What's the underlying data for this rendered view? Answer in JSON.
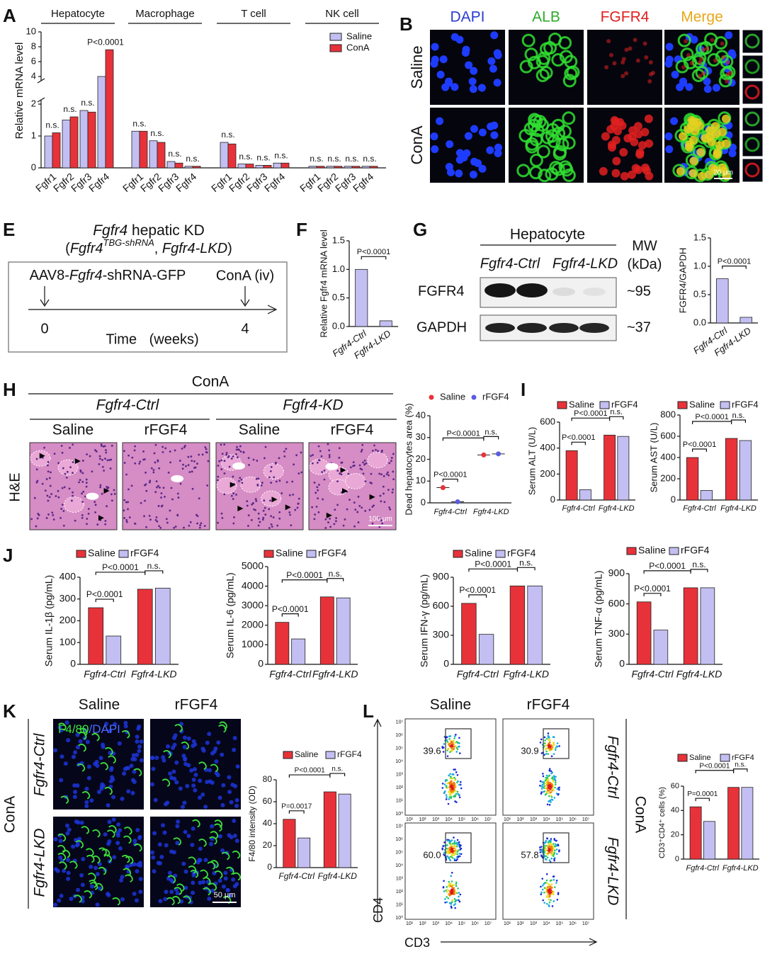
{
  "panel_labels": [
    "A",
    "B",
    "E",
    "F",
    "G",
    "H",
    "I",
    "J",
    "K",
    "L"
  ],
  "B": {
    "columns": [
      "DAPI",
      "ALB",
      "FGFR4",
      "Merge"
    ],
    "rows": [
      "Saline",
      "ConA"
    ],
    "scale_bar": "20 μm"
  },
  "E": {
    "title": [
      "Fgfr4",
      " hepatic KD"
    ],
    "subtitle": [
      "(",
      "Fgfr4",
      "TBG-shRNA",
      ", ",
      "Fgfr4-LKD",
      ")"
    ],
    "injection": [
      "AAV8-",
      "Fgfr4",
      "-shRNA-GFP"
    ],
    "treatment": "ConA (iv)",
    "timepoints": [
      "0",
      "4"
    ],
    "time_label": "Time (weeks)"
  },
  "G_blot": {
    "header": "Hepatocyte",
    "lanes": [
      "Fgfr4-Ctrl",
      "Fgfr4-LKD"
    ],
    "mw_header": [
      "MW",
      "(kDa)"
    ],
    "rows": [
      {
        "name": "FGFR4",
        "mw": "~95"
      },
      {
        "name": "GAPDH",
        "mw": "~37"
      }
    ]
  },
  "H_images": {
    "condition": "ConA",
    "genotypes": [
      "Fgfr4-Ctrl",
      "Fgfr4-KD"
    ],
    "treatments": [
      "Saline",
      "rFGF4",
      "Saline",
      "rFGF4"
    ],
    "stain": "H&E",
    "scale_bar": "100 μm"
  },
  "K_images": {
    "columns": [
      "Saline",
      "rFGF4"
    ],
    "rows": [
      "Fgfr4-Ctrl",
      "Fgfr4-LKD"
    ],
    "condition": "ConA",
    "stain": [
      "F4/80",
      "/DAPI"
    ],
    "scale_bar": "50 μm"
  },
  "L_flow": {
    "columns": [
      "Saline",
      "rFGF4"
    ],
    "rows": [
      "Fgfr4-Ctrl",
      "Fgfr4-LKD"
    ],
    "condition": "ConA",
    "y_axis": "CD4",
    "x_axis": "CD3",
    "gate_labels": [
      [
        "39.6",
        "30.9"
      ],
      [
        "60.0",
        "57.8"
      ]
    ],
    "yticks": [
      "10⁰",
      "10¹",
      "10²",
      "10³",
      "10⁴",
      "10⁵",
      "10⁶",
      "10⁷"
    ],
    "xticks": [
      "10¹",
      "10²",
      "10³",
      "10⁴",
      "10⁵",
      "10⁶",
      "10⁷"
    ]
  },
  "chart_data": [
    {
      "type": "bar",
      "ylabel": "Relative mRNA level",
      "groups": [
        "Hepatocyte",
        "Macrophage",
        "T cell",
        "NK cell"
      ],
      "categories": [
        "Fgfr1",
        "Fgfr2",
        "Fgfr3",
        "Fgfr4",
        "Fgfr1",
        "Fgfr2",
        "Fgfr3",
        "Fgfr4",
        "Fgfr1",
        "Fgfr2",
        "Fgfr3",
        "Fgfr4",
        "Fgfr1",
        "Fgfr2",
        "Fgfr3",
        "Fgfr4"
      ],
      "series": [
        {
          "name": "Saline",
          "color": "#c3bff2",
          "values": [
            1.0,
            1.5,
            1.8,
            4.0,
            1.15,
            0.85,
            0.2,
            0.05,
            0.8,
            0.12,
            0.08,
            0.15,
            0.05,
            0.05,
            0.05,
            0.05
          ]
        },
        {
          "name": "ConA",
          "color": "#e8323a",
          "values": [
            1.1,
            1.6,
            1.75,
            7.6,
            1.15,
            0.8,
            0.15,
            0.05,
            0.75,
            0.12,
            0.08,
            0.15,
            0.05,
            0.05,
            0.05,
            0.05
          ]
        }
      ],
      "ylim": [
        0,
        10
      ],
      "yticks": [
        0,
        1,
        2,
        4,
        6,
        8,
        10
      ],
      "axis_break": [
        2,
        4
      ],
      "legend": "upper right",
      "annotations": [
        "n.s.",
        "n.s.",
        "n.s.",
        "P<0.0001",
        "n.s.",
        "n.s.",
        "n.s.",
        "n.s.",
        "n.s.",
        "n.s.",
        "n.s.",
        "n.s.",
        "n.s.",
        "n.s.",
        "n.s.",
        "n.s."
      ]
    },
    {
      "type": "bar",
      "ylabel": "Relative Fgfr4 mRNA level",
      "categories": [
        "Fgfr4-Ctrl",
        "Fgfr4-LKD"
      ],
      "values": [
        1.0,
        0.1
      ],
      "color": "#c3bff2",
      "ylim": [
        0,
        1.5
      ],
      "yticks": [
        {
          "value": 0,
          "label": "0.0"
        },
        0.5,
        {
          "value": 1,
          "label": "1.0"
        },
        1.5
      ],
      "annotations": [
        "P<0.0001"
      ]
    },
    {
      "type": "bar",
      "ylabel": "FGFR4/GAPDH",
      "categories": [
        "Fgfr4-Ctrl",
        "Fgfr4-LKD"
      ],
      "values": [
        0.78,
        0.1
      ],
      "color": "#c3bff2",
      "ylim": [
        0,
        1.5
      ],
      "yticks": [
        {
          "value": 0,
          "label": "0.0"
        },
        0.5,
        {
          "value": 1,
          "label": "1.0"
        },
        1.5
      ],
      "annotations": [
        "P<0.0001"
      ]
    },
    {
      "type": "dot",
      "ylabel": "Dead hepatocytes area (%)",
      "categories": [
        "Fgfr4-Ctrl",
        "Fgfr4-LKD"
      ],
      "series": [
        {
          "name": "Saline",
          "color": "#e8323a",
          "values": [
            7,
            22
          ]
        },
        {
          "name": "rFGF4",
          "color": "#5b5be0",
          "values": [
            0.5,
            22.5
          ]
        }
      ],
      "ylim": [
        0,
        40
      ],
      "yticks": [
        0,
        10,
        20,
        30,
        40
      ],
      "annotations": [
        "P<0.0001",
        "P<0.0001",
        "n.s."
      ]
    },
    {
      "type": "bar",
      "ylabel": "Serum ALT (U/L)",
      "categories": [
        "Fgfr4-Ctrl",
        "Fgfr4-LKD"
      ],
      "series": [
        {
          "name": "Saline",
          "color": "#e8323a",
          "values": [
            380,
            500
          ]
        },
        {
          "name": "rFGF4",
          "color": "#c3bff2",
          "values": [
            80,
            490
          ]
        }
      ],
      "ylim": [
        0,
        600
      ],
      "yticks": [
        0,
        200,
        400,
        600
      ],
      "annotations": [
        "P<0.0001",
        "P<0.0001",
        "n.s."
      ]
    },
    {
      "type": "bar",
      "ylabel": "Serum AST (U/L)",
      "categories": [
        "Fgfr4-Ctrl",
        "Fgfr4-LKD"
      ],
      "series": [
        {
          "name": "Saline",
          "color": "#e8323a",
          "values": [
            400,
            580
          ]
        },
        {
          "name": "rFGF4",
          "color": "#c3bff2",
          "values": [
            90,
            560
          ]
        }
      ],
      "ylim": [
        0,
        800
      ],
      "yticks": [
        0,
        200,
        400,
        600,
        800
      ],
      "annotations": [
        "P<0.0001",
        "P<0.0001",
        "n.s."
      ]
    },
    {
      "type": "bar",
      "ylabel": "Serum IL-1β (pg/mL)",
      "categories": [
        "Fgfr4-Ctrl",
        "Fgfr4-LKD"
      ],
      "series": [
        {
          "name": "Saline",
          "color": "#e8323a",
          "values": [
            260,
            345
          ]
        },
        {
          "name": "rFGF4",
          "color": "#c3bff2",
          "values": [
            130,
            350
          ]
        }
      ],
      "ylim": [
        0,
        400
      ],
      "yticks": [
        0,
        100,
        200,
        300,
        400
      ],
      "annotations": [
        "P<0.0001",
        "P<0.0001",
        "n.s."
      ]
    },
    {
      "type": "bar",
      "ylabel": "Serum IL-6 (pg/mL)",
      "categories": [
        "Fgfr4-Ctrl",
        "Fgfr4-LKD"
      ],
      "series": [
        {
          "name": "Saline",
          "color": "#e8323a",
          "values": [
            2150,
            3450
          ]
        },
        {
          "name": "rFGF4",
          "color": "#c3bff2",
          "values": [
            1300,
            3400
          ]
        }
      ],
      "ylim": [
        0,
        5000
      ],
      "yticks": [
        0,
        1000,
        2000,
        3000,
        4000,
        5000
      ],
      "annotations": [
        "P<0.0001",
        "P<0.0001",
        "n.s."
      ]
    },
    {
      "type": "bar",
      "ylabel": "Serum IFN-γ (pg/mL)",
      "categories": [
        "Fgfr4-Ctrl",
        "Fgfr4-LKD"
      ],
      "series": [
        {
          "name": "Saline",
          "color": "#e8323a",
          "values": [
            630,
            810
          ]
        },
        {
          "name": "rFGF4",
          "color": "#c3bff2",
          "values": [
            310,
            810
          ]
        }
      ],
      "ylim": [
        0,
        900
      ],
      "yticks": [
        0,
        300,
        600,
        900
      ],
      "annotations": [
        "P<0.0001",
        "P<0.0001",
        "n.s."
      ]
    },
    {
      "type": "bar",
      "ylabel": "Serum TNF-α (pg/mL)",
      "categories": [
        "Fgfr4-Ctrl",
        "Fgfr4-LKD"
      ],
      "series": [
        {
          "name": "Saline",
          "color": "#e8323a",
          "values": [
            620,
            760
          ]
        },
        {
          "name": "rFGF4",
          "color": "#c3bff2",
          "values": [
            340,
            760
          ]
        }
      ],
      "ylim": [
        0,
        900
      ],
      "yticks": [
        0,
        300,
        600,
        900
      ],
      "annotations": [
        "P<0.0001",
        "P<0.0001",
        "n.s."
      ]
    },
    {
      "type": "bar",
      "ylabel": "F4/80 intensity (OD)",
      "categories": [
        "Fgfr4-Ctrl",
        "Fgfr4-LKD"
      ],
      "series": [
        {
          "name": "Saline",
          "color": "#e8323a",
          "values": [
            44,
            69
          ]
        },
        {
          "name": "rFGF4",
          "color": "#c3bff2",
          "values": [
            27,
            67
          ]
        }
      ],
      "ylim": [
        0,
        80
      ],
      "yticks": [
        0,
        20,
        40,
        60,
        80
      ],
      "annotations": [
        "P=0.0017",
        "P<0.0001",
        "n.s."
      ]
    },
    {
      "type": "bar",
      "ylabel": "CD3⁺CD4⁺ cells (%)",
      "categories": [
        "Fgfr4-Ctrl",
        "Fgfr4-LKD"
      ],
      "series": [
        {
          "name": "Saline",
          "color": "#e8323a",
          "values": [
            43,
            59
          ]
        },
        {
          "name": "rFGF4",
          "color": "#c3bff2",
          "values": [
            31,
            59
          ]
        }
      ],
      "ylim": [
        0,
        60
      ],
      "yticks": [
        0,
        20,
        40,
        60
      ],
      "annotations": [
        "P=0.0001",
        "P<0.0001",
        "n.s."
      ]
    }
  ]
}
